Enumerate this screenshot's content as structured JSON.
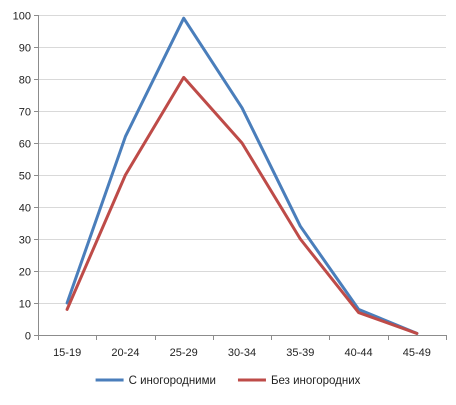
{
  "chart_data": {
    "type": "line",
    "categories": [
      "15-19",
      "20-24",
      "25-29",
      "30-34",
      "35-39",
      "40-44",
      "45-49"
    ],
    "series": [
      {
        "name": "С иногородними",
        "color": "#4a7ebb",
        "values": [
          10,
          62,
          99,
          71,
          34,
          8,
          0.5
        ]
      },
      {
        "name": "Без иногородних",
        "color": "#be4b48",
        "values": [
          8,
          50,
          80.5,
          60,
          30,
          7,
          0.5
        ]
      }
    ],
    "ylim": [
      0,
      100
    ],
    "yticks": [
      0,
      10,
      20,
      30,
      40,
      50,
      60,
      70,
      80,
      90,
      100
    ],
    "grid": true,
    "legend_position": "bottom",
    "title": "",
    "xlabel": "",
    "ylabel": ""
  }
}
